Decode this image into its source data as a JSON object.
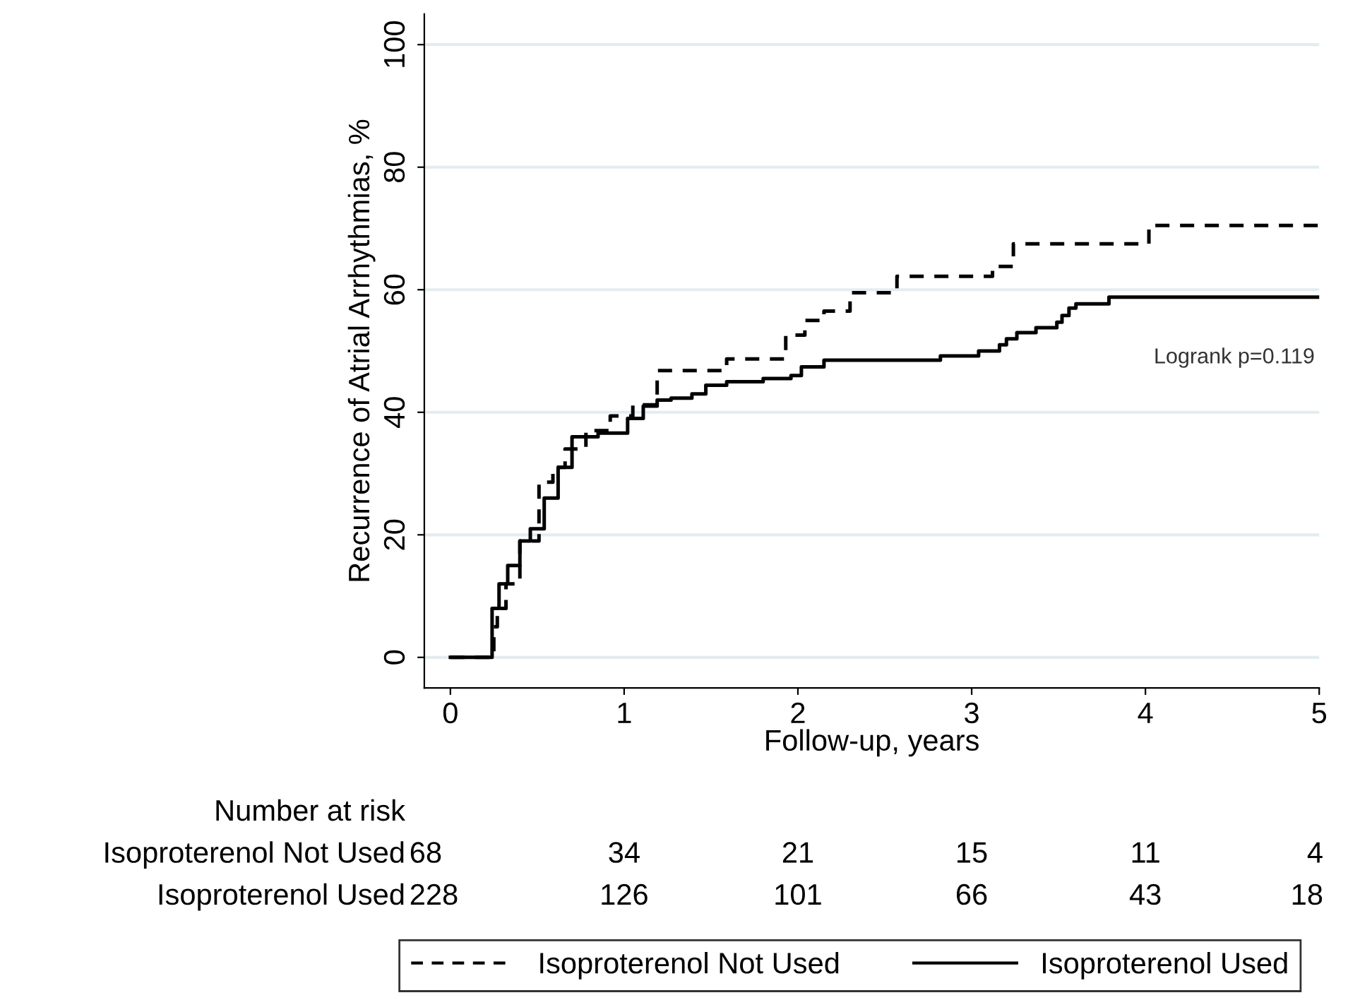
{
  "chart_data": {
    "type": "step",
    "xlabel": "Follow-up, years",
    "ylabel": "Recurrence of Atrial Arrhythmias, %",
    "xlim": [
      -0.15,
      5
    ],
    "xticks": [
      0,
      1,
      2,
      3,
      4,
      5
    ],
    "ylim": [
      -5,
      105
    ],
    "yticks": [
      0,
      20,
      40,
      60,
      80,
      100
    ],
    "grid": "y",
    "legend": "bottom",
    "marker": "none",
    "series": [
      {
        "name": "Isoproterenol Not Used",
        "color": "#000000",
        "line_style": "dashed",
        "x": [
          0,
          0.25,
          0.27,
          0.32,
          0.4,
          0.51,
          0.59,
          0.66,
          0.78,
          0.92,
          1.05,
          1.19,
          1.59,
          1.93,
          2.04,
          2.15,
          2.3,
          2.57,
          3.12,
          3.24,
          4.02,
          5
        ],
        "values": [
          0,
          5,
          8,
          12,
          19,
          28.6,
          31,
          34,
          37,
          39.4,
          41.2,
          46.8,
          48.7,
          52.6,
          55,
          56.5,
          59.5,
          62.2,
          63.8,
          67.5,
          70.5,
          70.5
        ]
      },
      {
        "name": "Isoproterenol Used",
        "color": "#000000",
        "line_style": "solid",
        "x": [
          0,
          0.24,
          0.28,
          0.33,
          0.4,
          0.46,
          0.54,
          0.62,
          0.7,
          0.85,
          1.02,
          1.11,
          1.19,
          1.27,
          1.39,
          1.47,
          1.59,
          1.8,
          1.96,
          2.02,
          2.15,
          2.82,
          3.04,
          3.16,
          3.2,
          3.26,
          3.37,
          3.49,
          3.52,
          3.56,
          3.6,
          3.79,
          5
        ],
        "values": [
          0,
          8,
          12,
          15,
          19,
          21,
          26,
          31,
          36,
          36.6,
          39,
          41,
          42,
          42.3,
          43,
          44.4,
          45,
          45.5,
          46,
          47.4,
          48.5,
          49.2,
          50,
          51,
          52,
          53,
          53.8,
          54.7,
          55.8,
          57,
          57.7,
          58.8,
          58.8
        ]
      }
    ],
    "annotations": [
      "Logrank p=0.119",
      "Number at risk",
      "Isoproterenol Not Used",
      "68",
      "34",
      "21",
      "15",
      "11",
      "4",
      "Isoproterenol Used",
      "228",
      "126",
      "101",
      "66",
      "43",
      "18"
    ]
  }
}
